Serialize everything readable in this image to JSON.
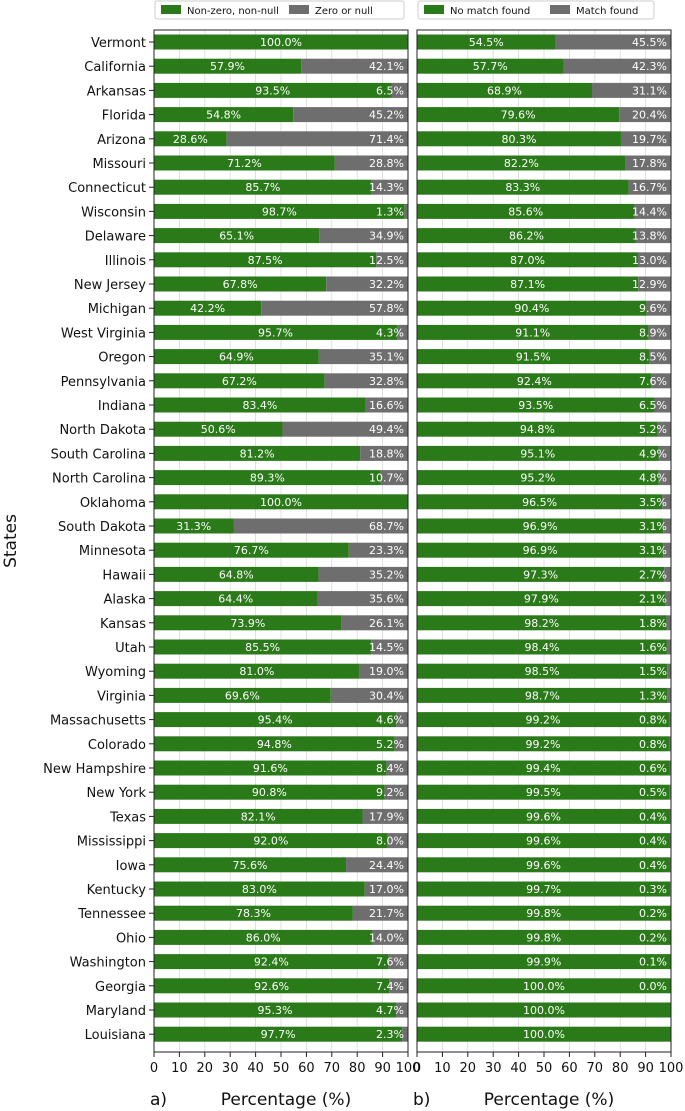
{
  "colors": {
    "green": "#2b7a19",
    "gray": "#6e6e6e",
    "grid": "#d9d9d9",
    "frame": "#222222"
  },
  "chart_data": [
    {
      "type": "bar",
      "orientation": "horizontal",
      "stacked": true,
      "panel_letter": "a)",
      "xlabel": "Percentage (%)",
      "ylabel": "States",
      "xlim": [
        0,
        100
      ],
      "xticks": [
        0,
        10,
        20,
        30,
        40,
        50,
        60,
        70,
        80,
        90,
        100
      ],
      "legend": {
        "placement": "top",
        "entries": [
          "Non-zero, non-null",
          "Zero or null"
        ]
      },
      "grid": true,
      "categories": [
        "Vermont",
        "California",
        "Arkansas",
        "Florida",
        "Arizona",
        "Missouri",
        "Connecticut",
        "Wisconsin",
        "Delaware",
        "Illinois",
        "New Jersey",
        "Michigan",
        "West Virginia",
        "Oregon",
        "Pennsylvania",
        "Indiana",
        "North Dakota",
        "South Carolina",
        "North Carolina",
        "Oklahoma",
        "South Dakota",
        "Minnesota",
        "Hawaii",
        "Alaska",
        "Kansas",
        "Utah",
        "Wyoming",
        "Virginia",
        "Massachusetts",
        "Colorado",
        "New Hampshire",
        "New York",
        "Texas",
        "Mississippi",
        "Iowa",
        "Kentucky",
        "Tennessee",
        "Ohio",
        "Washington",
        "Georgia",
        "Maryland",
        "Louisiana"
      ],
      "series": [
        {
          "name": "Non-zero, non-null",
          "values": [
            100.0,
            57.9,
            93.5,
            54.8,
            28.6,
            71.2,
            85.7,
            98.7,
            65.1,
            87.5,
            67.8,
            42.2,
            95.7,
            64.9,
            67.2,
            83.4,
            50.6,
            81.2,
            89.3,
            100.0,
            31.3,
            76.7,
            64.8,
            64.4,
            73.9,
            85.5,
            81.0,
            69.6,
            95.4,
            94.8,
            91.6,
            90.8,
            82.1,
            92.0,
            75.6,
            83.0,
            78.3,
            86.0,
            92.4,
            92.6,
            95.3,
            97.7
          ]
        },
        {
          "name": "Zero or null",
          "values": [
            0.0,
            42.1,
            6.5,
            45.2,
            71.4,
            28.8,
            14.3,
            1.3,
            34.9,
            12.5,
            32.2,
            57.8,
            4.3,
            35.1,
            32.8,
            16.6,
            49.4,
            18.8,
            10.7,
            0.0,
            68.7,
            23.3,
            35.2,
            35.6,
            26.1,
            14.5,
            19.0,
            30.4,
            4.6,
            5.2,
            8.4,
            9.2,
            17.9,
            8.0,
            24.4,
            17.0,
            21.7,
            14.0,
            7.6,
            7.4,
            4.7,
            2.3
          ]
        }
      ]
    },
    {
      "type": "bar",
      "orientation": "horizontal",
      "stacked": true,
      "panel_letter": "b)",
      "xlabel": "Percentage (%)",
      "xlim": [
        0,
        100
      ],
      "xticks": [
        0,
        10,
        20,
        30,
        40,
        50,
        60,
        70,
        80,
        90,
        100
      ],
      "legend": {
        "placement": "top",
        "entries": [
          "No match found",
          "Match found"
        ]
      },
      "grid": true,
      "series": [
        {
          "name": "No match found",
          "values": [
            54.5,
            57.7,
            68.9,
            79.6,
            80.3,
            82.2,
            83.3,
            85.6,
            86.2,
            87.0,
            87.1,
            90.4,
            91.1,
            91.5,
            92.4,
            93.5,
            94.8,
            95.1,
            95.2,
            96.5,
            96.9,
            96.9,
            97.3,
            97.9,
            98.2,
            98.4,
            98.5,
            98.7,
            99.2,
            99.2,
            99.4,
            99.5,
            99.6,
            99.6,
            99.6,
            99.7,
            99.8,
            99.8,
            99.9,
            100.0,
            100.0,
            100.0
          ]
        },
        {
          "name": "Match found",
          "values": [
            45.5,
            42.3,
            31.1,
            20.4,
            19.7,
            17.8,
            16.7,
            14.4,
            13.8,
            13.0,
            12.9,
            9.6,
            8.9,
            8.5,
            7.6,
            6.5,
            5.2,
            4.9,
            4.8,
            3.5,
            3.1,
            3.1,
            2.7,
            2.1,
            1.8,
            1.6,
            1.5,
            1.3,
            0.8,
            0.8,
            0.6,
            0.5,
            0.4,
            0.4,
            0.4,
            0.3,
            0.2,
            0.2,
            0.1,
            0.0,
            null,
            null
          ]
        }
      ]
    }
  ]
}
